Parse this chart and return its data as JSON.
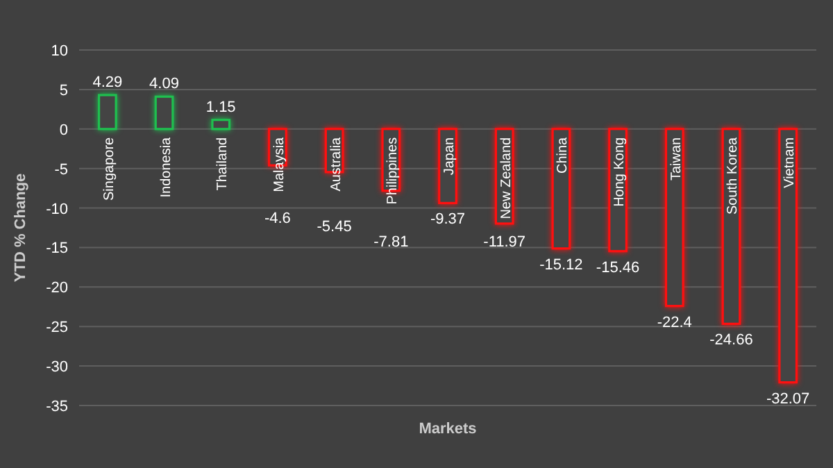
{
  "chart_data": {
    "type": "bar",
    "xlabel": "Markets",
    "ylabel": "YTD  % Change",
    "categories": [
      "Singapore",
      "Indonesia",
      "Thailand",
      "Malaysia",
      "Australia",
      "Philippines",
      "Japan",
      "New Zealand",
      "China",
      "Hong Kong",
      "Taiwan",
      "South Korea",
      "Vietnam"
    ],
    "values": [
      4.29,
      4.09,
      1.15,
      -4.6,
      -5.45,
      -7.81,
      -9.37,
      -11.97,
      -15.12,
      -15.46,
      -22.4,
      -24.66,
      -32.07
    ],
    "colors": [
      "#1fbf4f",
      "#1fbf4f",
      "#1fbf4f",
      "#ff1010",
      "#ff1010",
      "#ff1010",
      "#ff1010",
      "#ff1010",
      "#ff1010",
      "#ff1010",
      "#ff1010",
      "#ff1010",
      "#ff1010"
    ],
    "ylim": [
      -35,
      10
    ],
    "yticks": [
      -35,
      -30,
      -25,
      -20,
      -15,
      -10,
      -5,
      0,
      5,
      10
    ],
    "grid": "y",
    "data_labels": true
  }
}
